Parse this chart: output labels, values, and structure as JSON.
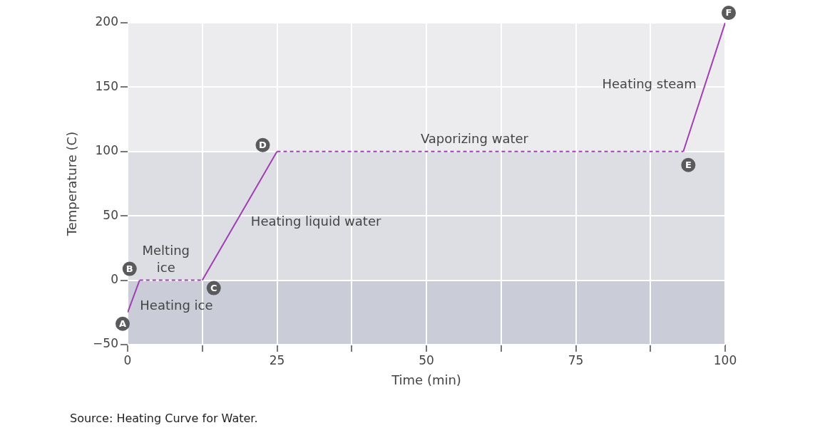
{
  "chart_data": {
    "type": "line",
    "xlabel": "Time (min)",
    "ylabel": "Temperature (C)",
    "xlim": [
      0,
      100
    ],
    "xticks": [
      0,
      {
        "value": 12.5,
        "label": null
      },
      25,
      {
        "value": 37.5,
        "label": null
      },
      50,
      {
        "value": 62.5,
        "label": null
      },
      75,
      {
        "value": 87.5,
        "label": null
      },
      100
    ],
    "ylim": [
      -50,
      200
    ],
    "yticks": [
      -50,
      0,
      50,
      100,
      150,
      200
    ],
    "grid": true,
    "legend": false,
    "marker": "none",
    "series": [
      {
        "color": "#a13db5",
        "x": [
          0,
          2
        ],
        "values": [
          -25,
          0
        ],
        "line_style": "solid"
      },
      {
        "color": "#a13db5",
        "x": [
          2,
          12.5
        ],
        "values": [
          0,
          0
        ],
        "line_style": "dashed"
      },
      {
        "color": "#a13db5",
        "x": [
          12.5,
          25
        ],
        "values": [
          0,
          100
        ],
        "line_style": "solid"
      },
      {
        "color": "#a13db5",
        "x": [
          25,
          93
        ],
        "values": [
          100,
          100
        ],
        "line_style": "dashed"
      },
      {
        "color": "#a13db5",
        "x": [
          93,
          100
        ],
        "values": [
          100,
          200
        ],
        "line_style": "solid"
      }
    ],
    "bands": [
      {
        "axis": "y",
        "from": -50,
        "to": 0,
        "color": "#cacdd7"
      },
      {
        "axis": "y",
        "from": 0,
        "to": 100,
        "color": "#dcdee3"
      },
      {
        "axis": "y",
        "from": 100,
        "to": 200,
        "color": "#ececef"
      }
    ],
    "annotations": [
      {
        "text": "A",
        "x": 0,
        "y": -25
      },
      {
        "text": "B",
        "x": 2,
        "y": 0
      },
      {
        "text": "C",
        "x": 12.5,
        "y": 0
      },
      {
        "text": "D",
        "x": 25,
        "y": 100
      },
      {
        "text": "E",
        "x": 93,
        "y": 100
      },
      {
        "text": "F",
        "x": 100,
        "y": 200
      },
      {
        "text": "Melting\nice",
        "x": 7.25,
        "y": 0
      },
      {
        "text": "Heating ice",
        "x": 1,
        "y": -12.5
      },
      {
        "text": "Heating liquid water",
        "x": 18.75,
        "y": 50
      },
      {
        "text": "Vaporizing water",
        "x": 59,
        "y": 100
      },
      {
        "text": "Heating steam",
        "x": 96.5,
        "y": 150
      },
      "Source: Heating Curve for Water."
    ]
  }
}
